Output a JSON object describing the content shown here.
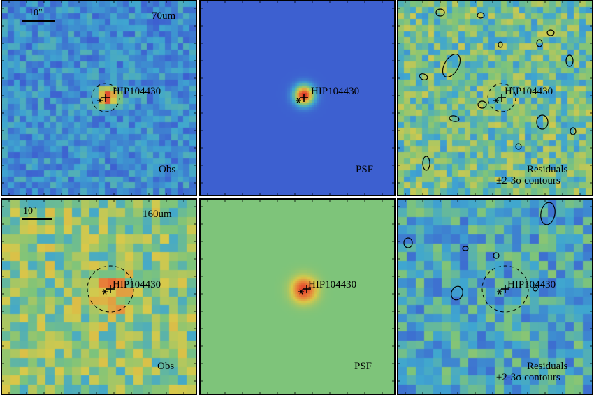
{
  "target_name": "HIP104430",
  "scale_bar_text": "10\"",
  "rows": [
    {
      "wavelength": "70um",
      "panels": [
        {
          "kind": "obs",
          "label_lines": [
            "Obs"
          ]
        },
        {
          "kind": "psf",
          "label_lines": [
            "PSF"
          ]
        },
        {
          "kind": "residual",
          "label_lines": [
            "Residuals",
            "±2-3σ contours"
          ]
        }
      ]
    },
    {
      "wavelength": "160um",
      "panels": [
        {
          "kind": "obs",
          "label_lines": [
            "Obs"
          ]
        },
        {
          "kind": "psf",
          "label_lines": [
            "PSF"
          ]
        },
        {
          "kind": "residual",
          "label_lines": [
            "Residuals",
            "±2-3σ contours"
          ]
        }
      ]
    }
  ],
  "colors": {
    "cmap_low": "#4a2a8a",
    "cmap_mid_blue": "#3d5fd0",
    "cmap_cyan": "#3fa6d0",
    "cmap_green": "#7ec47a",
    "cmap_yellow": "#d8c94a",
    "cmap_orange": "#e8823a",
    "cmap_high": "#e03a2a",
    "psf70_background": "#3a5ec8",
    "psf160_background": "#7cc274"
  }
}
